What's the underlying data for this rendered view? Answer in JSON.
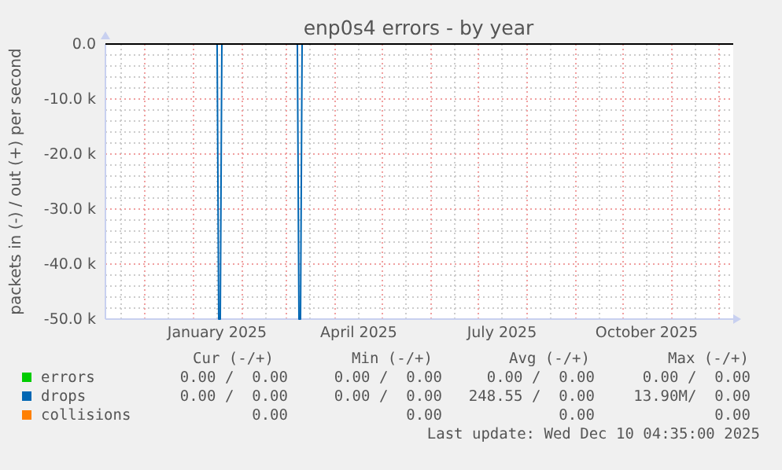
{
  "chart_data": {
    "type": "line",
    "title": "enp0s4 errors - by year",
    "ylabel": "packets in (-) / out (+) per second",
    "xlim": [
      "2024-11-06",
      "2025-12-10"
    ],
    "ylim": [
      -50000,
      0
    ],
    "xticks": [
      {
        "value": "2025-01-16",
        "label": "January 2025"
      },
      {
        "value": "2025-04-16",
        "label": "April 2025"
      },
      {
        "value": "2025-07-16",
        "label": "July 2025"
      },
      {
        "value": "2025-10-16",
        "label": "October 2025"
      }
    ],
    "yticks": [
      {
        "value": 0,
        "label": "0.0"
      },
      {
        "value": -10000,
        "label": "-10.0 k"
      },
      {
        "value": -20000,
        "label": "-20.0 k"
      },
      {
        "value": -30000,
        "label": "-30.0 k"
      },
      {
        "value": -40000,
        "label": "-40.0 k"
      },
      {
        "value": -50000,
        "label": "-50.0 k"
      }
    ],
    "grid": true,
    "legend": "bottom",
    "series": [
      {
        "name": "errors",
        "color": "#00cc00"
      },
      {
        "name": "drops",
        "color": "#0066b3",
        "x": [
          "2024-11-06",
          "2025-01-16",
          "2025-01-17",
          "2025-01-18",
          "2025-01-19",
          "2025-03-08",
          "2025-03-09",
          "2025-03-10",
          "2025-03-11",
          "2025-12-10"
        ],
        "values": [
          0,
          0,
          -50000,
          -50000,
          0,
          0,
          -50000,
          -50000,
          0,
          0
        ]
      },
      {
        "name": "collisions",
        "color": "#ff8000"
      }
    ],
    "annotations": [
      "Cur (-/+)",
      "Min (-/+)",
      "Avg (-/+)",
      "Max (-/+)",
      "0.00 /  0.00",
      "0.00 /  0.00",
      "0.00 /  0.00",
      "0.00 /  0.00",
      "0.00 /  0.00",
      "0.00 /  0.00",
      "248.55 /  0.00",
      "13.90M/  0.00",
      "0.00",
      "0.00",
      "0.00",
      "0.00",
      "Last update: Wed Dec 10 04:35:00 2025"
    ]
  }
}
